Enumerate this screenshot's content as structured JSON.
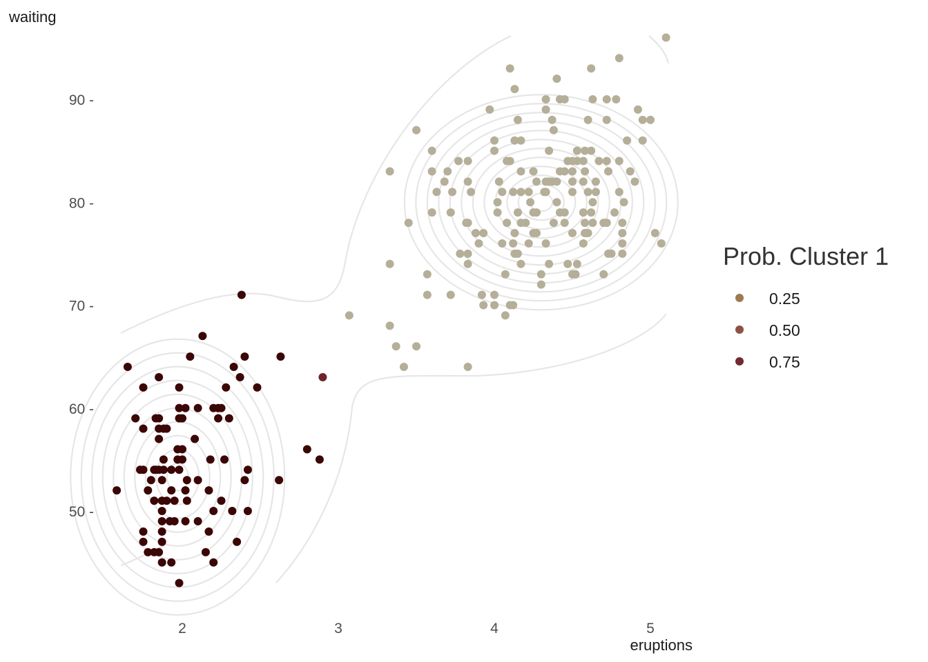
{
  "chart_data": {
    "type": "scatter",
    "xlabel": "eruptions",
    "ylabel": "waiting",
    "xlim": [
      1.6,
      5.1
    ],
    "ylim": [
      43,
      96
    ],
    "x_ticks": [
      2,
      3,
      4,
      5
    ],
    "y_ticks": [
      50,
      60,
      70,
      80,
      90
    ],
    "x_tick_labels": [
      "2",
      "3",
      "4",
      "5"
    ],
    "y_tick_labels": [
      "50 -",
      "60 -",
      "70 -",
      "80 -",
      "90 -"
    ],
    "grid": false,
    "legend": {
      "title": "Prob. Cluster 1",
      "placement": "right",
      "entries": [
        {
          "label": "0.25",
          "color": "#9c7b50"
        },
        {
          "label": "0.50",
          "color": "#8c5345"
        },
        {
          "label": "0.75",
          "color": "#722a31"
        }
      ]
    },
    "cluster_colors": {
      "cluster1": "#3b0606",
      "cluster2": "#b5ae98",
      "mixed": "#6e2428"
    },
    "series": [
      {
        "cluster": 1,
        "color": "#3b0606",
        "points": [
          [
            2.38,
            71
          ],
          [
            2.13,
            67
          ],
          [
            1.65,
            64
          ],
          [
            2.05,
            65
          ],
          [
            2.4,
            65
          ],
          [
            2.63,
            65
          ],
          [
            2.33,
            64
          ],
          [
            2.37,
            63
          ],
          [
            1.85,
            63
          ],
          [
            1.75,
            62
          ],
          [
            1.98,
            62
          ],
          [
            2.28,
            62
          ],
          [
            2.48,
            62
          ],
          [
            1.98,
            60
          ],
          [
            2.02,
            60
          ],
          [
            2.1,
            60
          ],
          [
            2.2,
            60
          ],
          [
            2.23,
            60
          ],
          [
            2.25,
            60
          ],
          [
            1.7,
            59
          ],
          [
            1.83,
            59
          ],
          [
            1.85,
            59
          ],
          [
            1.98,
            59
          ],
          [
            2.0,
            59
          ],
          [
            2.23,
            59
          ],
          [
            2.3,
            59
          ],
          [
            1.75,
            58
          ],
          [
            1.85,
            58
          ],
          [
            1.88,
            58
          ],
          [
            1.9,
            58
          ],
          [
            1.85,
            57
          ],
          [
            2.08,
            57
          ],
          [
            1.97,
            56
          ],
          [
            2.0,
            56
          ],
          [
            2.8,
            56
          ],
          [
            1.88,
            55
          ],
          [
            1.97,
            55
          ],
          [
            2.0,
            55
          ],
          [
            2.18,
            55
          ],
          [
            2.27,
            55
          ],
          [
            2.88,
            55
          ],
          [
            1.73,
            54
          ],
          [
            1.75,
            54
          ],
          [
            1.82,
            54
          ],
          [
            1.83,
            54
          ],
          [
            1.85,
            54
          ],
          [
            1.88,
            54
          ],
          [
            1.93,
            54
          ],
          [
            1.98,
            54
          ],
          [
            2.42,
            54
          ],
          [
            1.8,
            53
          ],
          [
            1.87,
            53
          ],
          [
            2.03,
            53
          ],
          [
            2.1,
            53
          ],
          [
            2.4,
            53
          ],
          [
            2.62,
            53
          ],
          [
            1.58,
            52
          ],
          [
            1.78,
            52
          ],
          [
            1.93,
            52
          ],
          [
            2.02,
            52
          ],
          [
            2.17,
            52
          ],
          [
            1.82,
            51
          ],
          [
            1.87,
            51
          ],
          [
            1.9,
            51
          ],
          [
            1.95,
            51
          ],
          [
            2.03,
            51
          ],
          [
            2.25,
            51
          ],
          [
            1.87,
            50
          ],
          [
            2.2,
            50
          ],
          [
            2.32,
            50
          ],
          [
            2.42,
            50
          ],
          [
            1.87,
            49
          ],
          [
            1.92,
            49
          ],
          [
            1.95,
            49
          ],
          [
            2.02,
            49
          ],
          [
            2.1,
            49
          ],
          [
            1.75,
            48
          ],
          [
            1.87,
            48
          ],
          [
            2.17,
            48
          ],
          [
            1.75,
            47
          ],
          [
            1.87,
            47
          ],
          [
            2.35,
            47
          ],
          [
            1.78,
            46
          ],
          [
            1.82,
            46
          ],
          [
            1.85,
            46
          ],
          [
            2.15,
            46
          ],
          [
            1.87,
            45
          ],
          [
            1.93,
            45
          ],
          [
            2.2,
            45
          ],
          [
            1.98,
            43
          ]
        ]
      },
      {
        "cluster": 2,
        "color": "#b5ae98",
        "points": [
          [
            5.1,
            96
          ],
          [
            4.8,
            94
          ],
          [
            4.1,
            93
          ],
          [
            4.62,
            93
          ],
          [
            4.4,
            92
          ],
          [
            4.13,
            91
          ],
          [
            4.33,
            90
          ],
          [
            4.42,
            90
          ],
          [
            4.45,
            90
          ],
          [
            4.63,
            90
          ],
          [
            4.72,
            90
          ],
          [
            4.78,
            90
          ],
          [
            3.97,
            89
          ],
          [
            4.33,
            89
          ],
          [
            4.92,
            89
          ],
          [
            4.15,
            88
          ],
          [
            4.37,
            88
          ],
          [
            4.6,
            88
          ],
          [
            4.72,
            88
          ],
          [
            4.95,
            88
          ],
          [
            5.0,
            88
          ],
          [
            3.5,
            87
          ],
          [
            4.38,
            87
          ],
          [
            4.13,
            86
          ],
          [
            4.17,
            86
          ],
          [
            4.85,
            86
          ],
          [
            4.95,
            86
          ],
          [
            4.0,
            86
          ],
          [
            3.6,
            85
          ],
          [
            4.0,
            85
          ],
          [
            4.35,
            85
          ],
          [
            4.53,
            85
          ],
          [
            4.58,
            85
          ],
          [
            4.62,
            85
          ],
          [
            3.77,
            84
          ],
          [
            3.83,
            84
          ],
          [
            4.08,
            84
          ],
          [
            4.1,
            84
          ],
          [
            4.47,
            84
          ],
          [
            4.5,
            84
          ],
          [
            4.53,
            84
          ],
          [
            4.57,
            84
          ],
          [
            4.67,
            84
          ],
          [
            4.72,
            84
          ],
          [
            4.8,
            84
          ],
          [
            3.33,
            83
          ],
          [
            3.6,
            83
          ],
          [
            3.7,
            83
          ],
          [
            4.17,
            83
          ],
          [
            4.25,
            83
          ],
          [
            4.42,
            83
          ],
          [
            4.45,
            83
          ],
          [
            4.5,
            83
          ],
          [
            4.58,
            83
          ],
          [
            4.73,
            83
          ],
          [
            4.87,
            83
          ],
          [
            3.68,
            82
          ],
          [
            3.83,
            82
          ],
          [
            4.03,
            82
          ],
          [
            4.27,
            82
          ],
          [
            4.33,
            82
          ],
          [
            4.35,
            82
          ],
          [
            4.37,
            82
          ],
          [
            4.4,
            82
          ],
          [
            4.5,
            82
          ],
          [
            4.57,
            82
          ],
          [
            4.65,
            82
          ],
          [
            4.9,
            82
          ],
          [
            3.63,
            81
          ],
          [
            3.73,
            81
          ],
          [
            3.85,
            81
          ],
          [
            4.05,
            81
          ],
          [
            4.12,
            81
          ],
          [
            4.17,
            81
          ],
          [
            4.22,
            81
          ],
          [
            4.32,
            81
          ],
          [
            4.33,
            81
          ],
          [
            4.5,
            81
          ],
          [
            4.6,
            81
          ],
          [
            4.65,
            81
          ],
          [
            4.8,
            81
          ],
          [
            4.02,
            80
          ],
          [
            4.23,
            80
          ],
          [
            4.4,
            80
          ],
          [
            4.63,
            80
          ],
          [
            4.83,
            80
          ],
          [
            3.6,
            79
          ],
          [
            3.72,
            79
          ],
          [
            4.02,
            79
          ],
          [
            4.15,
            79
          ],
          [
            4.25,
            79
          ],
          [
            4.27,
            79
          ],
          [
            4.42,
            79
          ],
          [
            4.45,
            79
          ],
          [
            4.57,
            79
          ],
          [
            4.62,
            79
          ],
          [
            4.77,
            79
          ],
          [
            3.45,
            78
          ],
          [
            3.82,
            78
          ],
          [
            3.83,
            78
          ],
          [
            4.08,
            78
          ],
          [
            4.17,
            78
          ],
          [
            4.2,
            78
          ],
          [
            4.38,
            78
          ],
          [
            4.45,
            78
          ],
          [
            4.58,
            78
          ],
          [
            4.63,
            78
          ],
          [
            4.7,
            78
          ],
          [
            4.72,
            78
          ],
          [
            4.82,
            78
          ],
          [
            3.88,
            77
          ],
          [
            3.93,
            77
          ],
          [
            4.13,
            77
          ],
          [
            4.25,
            77
          ],
          [
            4.27,
            77
          ],
          [
            4.5,
            77
          ],
          [
            4.58,
            77
          ],
          [
            4.6,
            77
          ],
          [
            4.82,
            77
          ],
          [
            5.03,
            77
          ],
          [
            3.9,
            76
          ],
          [
            4.05,
            76
          ],
          [
            4.12,
            76
          ],
          [
            4.22,
            76
          ],
          [
            4.33,
            76
          ],
          [
            4.57,
            76
          ],
          [
            4.82,
            76
          ],
          [
            5.07,
            76
          ],
          [
            3.78,
            75
          ],
          [
            3.83,
            75
          ],
          [
            4.13,
            75
          ],
          [
            4.15,
            75
          ],
          [
            4.73,
            75
          ],
          [
            4.75,
            75
          ],
          [
            4.82,
            75
          ],
          [
            3.33,
            74
          ],
          [
            3.83,
            74
          ],
          [
            4.17,
            74
          ],
          [
            4.35,
            74
          ],
          [
            4.47,
            74
          ],
          [
            4.53,
            74
          ],
          [
            3.57,
            73
          ],
          [
            4.07,
            73
          ],
          [
            4.3,
            73
          ],
          [
            4.5,
            73
          ],
          [
            4.52,
            73
          ],
          [
            4.7,
            73
          ],
          [
            4.3,
            72
          ],
          [
            3.57,
            71
          ],
          [
            3.72,
            71
          ],
          [
            3.92,
            71
          ],
          [
            4.0,
            71
          ],
          [
            3.93,
            70
          ],
          [
            4.0,
            70
          ],
          [
            4.1,
            70
          ],
          [
            4.12,
            70
          ],
          [
            4.07,
            69
          ],
          [
            3.07,
            69
          ],
          [
            3.33,
            68
          ],
          [
            3.37,
            66
          ],
          [
            3.5,
            66
          ],
          [
            3.42,
            64
          ],
          [
            3.83,
            64
          ]
        ]
      },
      {
        "cluster": "mixed",
        "color": "#6e2428",
        "points": [
          [
            2.9,
            63
          ]
        ]
      }
    ],
    "contours": [
      {
        "center": [
          1.97,
          53.3
        ],
        "levels": 10,
        "cluster": 1
      },
      {
        "center": [
          4.3,
          80.0
        ],
        "levels": 12,
        "cluster": 2
      }
    ]
  }
}
